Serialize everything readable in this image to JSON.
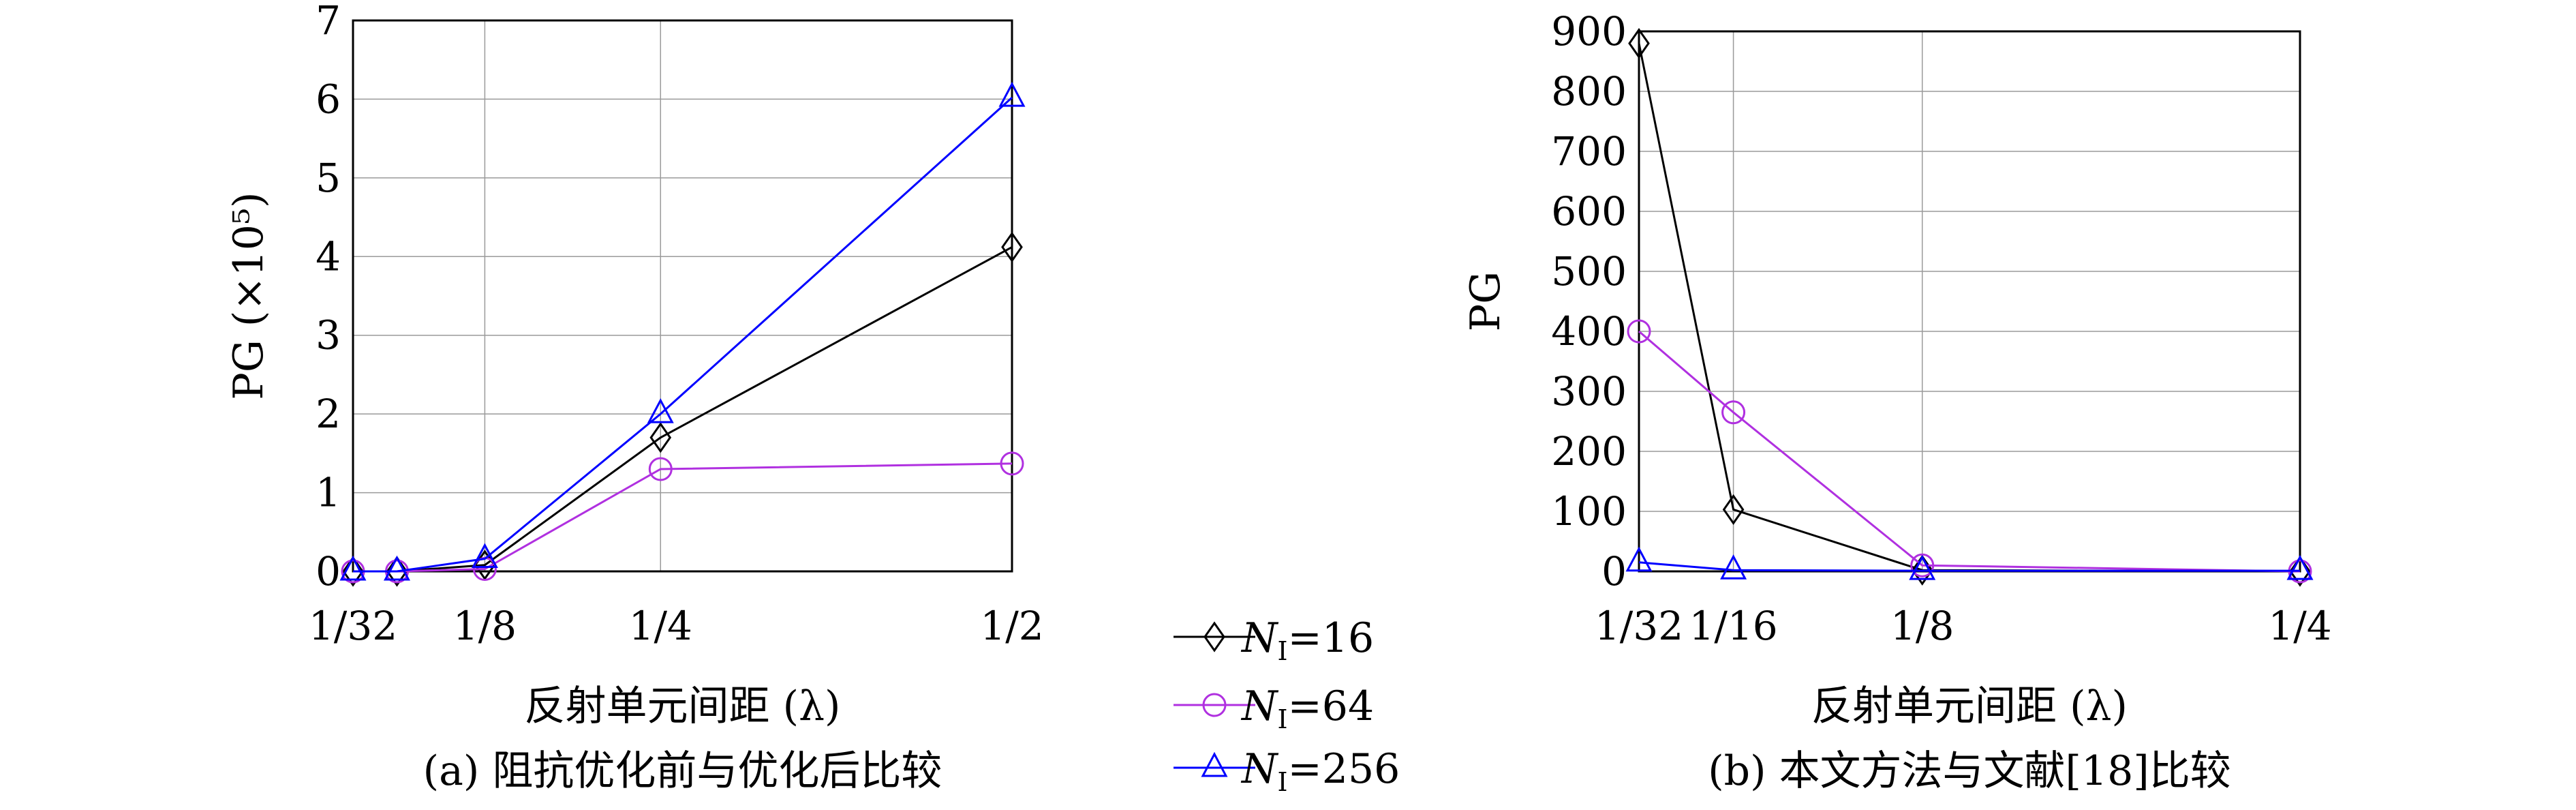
{
  "chart_data": [
    {
      "type": "line",
      "caption": "(a) 阻抗优化前与优化后比较",
      "xlabel": "反射单元间距 (λ)",
      "ylabel": "PG (×10⁵)",
      "x_ticks": [
        {
          "value": 0.03125,
          "label": "1/32"
        },
        {
          "value": 0.125,
          "label": "1/8"
        },
        {
          "value": 0.25,
          "label": "1/4"
        },
        {
          "value": 0.5,
          "label": "1/2"
        }
      ],
      "y_ticks": [
        0,
        1,
        2,
        3,
        4,
        5,
        6,
        7
      ],
      "xlim": [
        0.03125,
        0.5
      ],
      "ylim": [
        0,
        7
      ],
      "grid": true,
      "series": [
        {
          "name": "NI=16",
          "color": "#000000",
          "marker": "diamond",
          "x": [
            0.03125,
            0.0625,
            0.125,
            0.25,
            0.5
          ],
          "y": [
            0.0,
            0.0,
            0.08,
            1.7,
            4.12
          ]
        },
        {
          "name": "NI=64",
          "color": "#b030e0",
          "marker": "circle",
          "x": [
            0.03125,
            0.0625,
            0.125,
            0.25,
            0.5
          ],
          "y": [
            0.0,
            0.0,
            0.03,
            1.3,
            1.37
          ]
        },
        {
          "name": "NI=256",
          "color": "#0000ff",
          "marker": "triangle",
          "x": [
            0.03125,
            0.0625,
            0.125,
            0.25,
            0.5
          ],
          "y": [
            0.0,
            0.0,
            0.16,
            2.0,
            6.02
          ]
        }
      ]
    },
    {
      "type": "line",
      "caption": "(b) 本文方法与文献[18]比较",
      "xlabel": "反射单元间距 (λ)",
      "ylabel": "PG",
      "x_ticks": [
        {
          "value": 0.03125,
          "label": "1/32"
        },
        {
          "value": 0.0625,
          "label": "1/16"
        },
        {
          "value": 0.125,
          "label": "1/8"
        },
        {
          "value": 0.25,
          "label": "1/4"
        }
      ],
      "y_ticks": [
        0,
        100,
        200,
        300,
        400,
        500,
        600,
        700,
        800,
        900
      ],
      "xlim": [
        0.03125,
        0.25
      ],
      "ylim": [
        0,
        900
      ],
      "grid": true,
      "series": [
        {
          "name": "NI=16",
          "color": "#000000",
          "marker": "diamond",
          "x": [
            0.03125,
            0.0625,
            0.125,
            0.25
          ],
          "y": [
            880,
            103,
            2,
            0
          ]
        },
        {
          "name": "NI=64",
          "color": "#b030e0",
          "marker": "circle",
          "x": [
            0.03125,
            0.0625,
            0.125,
            0.25
          ],
          "y": [
            400,
            265,
            10,
            0
          ]
        },
        {
          "name": "NI=256",
          "color": "#0000ff",
          "marker": "triangle",
          "x": [
            0.03125,
            0.0625,
            0.125,
            0.25
          ],
          "y": [
            15,
            2,
            1,
            1
          ]
        }
      ]
    }
  ],
  "legend": {
    "placement": "center-between-panels",
    "entries": [
      {
        "symbol": "N",
        "subscript": "I",
        "value": "=16",
        "color": "#000000",
        "marker": "diamond"
      },
      {
        "symbol": "N",
        "subscript": "I",
        "value": "=64",
        "color": "#b030e0",
        "marker": "circle"
      },
      {
        "symbol": "N",
        "subscript": "I",
        "value": "=256",
        "color": "#0000ff",
        "marker": "triangle"
      }
    ]
  }
}
